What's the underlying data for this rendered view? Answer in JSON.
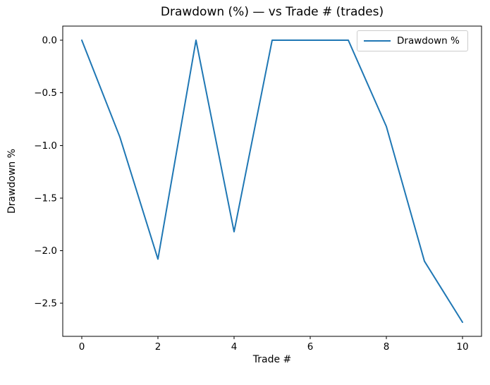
{
  "chart_data": {
    "type": "line",
    "title": "Drawdown (%) — vs Trade # (trades)",
    "xlabel": "Trade #",
    "ylabel": "Drawdown %",
    "x": [
      0,
      1,
      2,
      3,
      4,
      5,
      6,
      7,
      8,
      9,
      10
    ],
    "series": [
      {
        "name": "Drawdown %",
        "color": "#1f77b4",
        "values": [
          0,
          -0.92,
          -2.08,
          0,
          -1.82,
          0,
          0,
          0,
          -0.82,
          -2.1,
          -2.68
        ]
      }
    ],
    "xlim": [
      -0.5,
      10.5
    ],
    "ylim": [
      -2.814,
      0.134
    ],
    "xticks": {
      "values": [
        0,
        2,
        4,
        6,
        8,
        10
      ],
      "labels": [
        "0",
        "2",
        "4",
        "6",
        "8",
        "10"
      ]
    },
    "yticks": {
      "values": [
        0,
        -0.5,
        -1,
        -1.5,
        -2,
        -2.5
      ],
      "labels": [
        "0.0",
        "−0.5",
        "−1.0",
        "−1.5",
        "−2.0",
        "−2.5"
      ]
    },
    "grid": false,
    "legend": {
      "position": "upper right",
      "entries": [
        "Drawdown %"
      ]
    }
  }
}
